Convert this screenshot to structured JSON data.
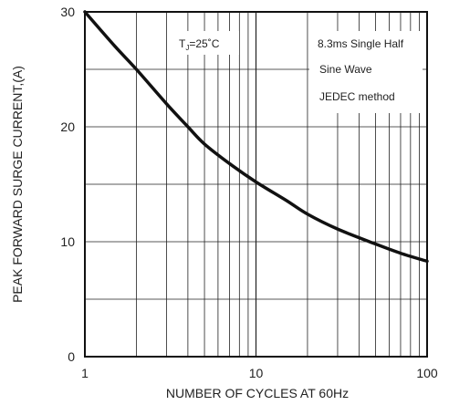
{
  "chart_data": {
    "type": "line",
    "xscale": "log",
    "xlim": [
      1,
      100
    ],
    "ylim": [
      0,
      30
    ],
    "x_ticks": [
      "1",
      "10",
      "100"
    ],
    "y_ticks": [
      "0",
      "10",
      "20",
      "30"
    ],
    "xlabel": "NUMBER OF CYCLES AT 60Hz",
    "ylabel": "PEAK FORWARD SURGE CURRENT,(A)",
    "grid": true,
    "annotations": {
      "temperature_main": "T",
      "temperature_sub": "J",
      "temperature_rest": "=25˚C",
      "lines": [
        "8.3ms Single Half",
        "Sine Wave",
        "JEDEC method"
      ]
    },
    "series": [
      {
        "x": [
          1,
          1.5,
          2,
          3,
          4,
          5,
          7,
          10,
          15,
          20,
          30,
          50,
          70,
          100
        ],
        "y": [
          30,
          27,
          25,
          22,
          20,
          18.5,
          16.8,
          15.2,
          13.6,
          12.4,
          11.1,
          9.8,
          9.0,
          8.3
        ]
      }
    ]
  }
}
